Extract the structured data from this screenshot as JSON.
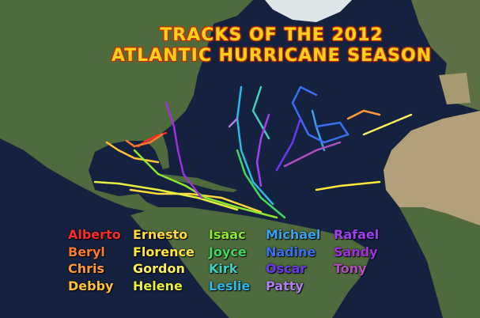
{
  "title": {
    "line1": "TRACKS OF THE 2012",
    "line2": "ATLANTIC HURRICANE SEASON"
  },
  "colors": {
    "ocean": "#14213f",
    "land": "#4f6a3c",
    "desert": "#b3a07a",
    "ice": "#dfe6ea"
  },
  "storms": [
    {
      "name": "Alberto",
      "color": "#ff2a2a"
    },
    {
      "name": "Beryl",
      "color": "#ff7a2a"
    },
    {
      "name": "Chris",
      "color": "#ff9a3a"
    },
    {
      "name": "Debby",
      "color": "#ffc03a"
    },
    {
      "name": "Ernesto",
      "color": "#ffd83a"
    },
    {
      "name": "Florence",
      "color": "#ffe83a"
    },
    {
      "name": "Gordon",
      "color": "#fff060"
    },
    {
      "name": "Helene",
      "color": "#e8f040"
    },
    {
      "name": "Isaac",
      "color": "#8ee830"
    },
    {
      "name": "Joyce",
      "color": "#40d860"
    },
    {
      "name": "Kirk",
      "color": "#40d0c0"
    },
    {
      "name": "Leslie",
      "color": "#30b8e8"
    },
    {
      "name": "Michael",
      "color": "#3aa0f0"
    },
    {
      "name": "Nadine",
      "color": "#3a70f0"
    },
    {
      "name": "Oscar",
      "color": "#6a3af0"
    },
    {
      "name": "Patty",
      "color": "#b080f0"
    },
    {
      "name": "Rafael",
      "color": "#a040f0"
    },
    {
      "name": "Sandy",
      "color": "#a030e0"
    },
    {
      "name": "Tony",
      "color": "#b050c0"
    }
  ]
}
